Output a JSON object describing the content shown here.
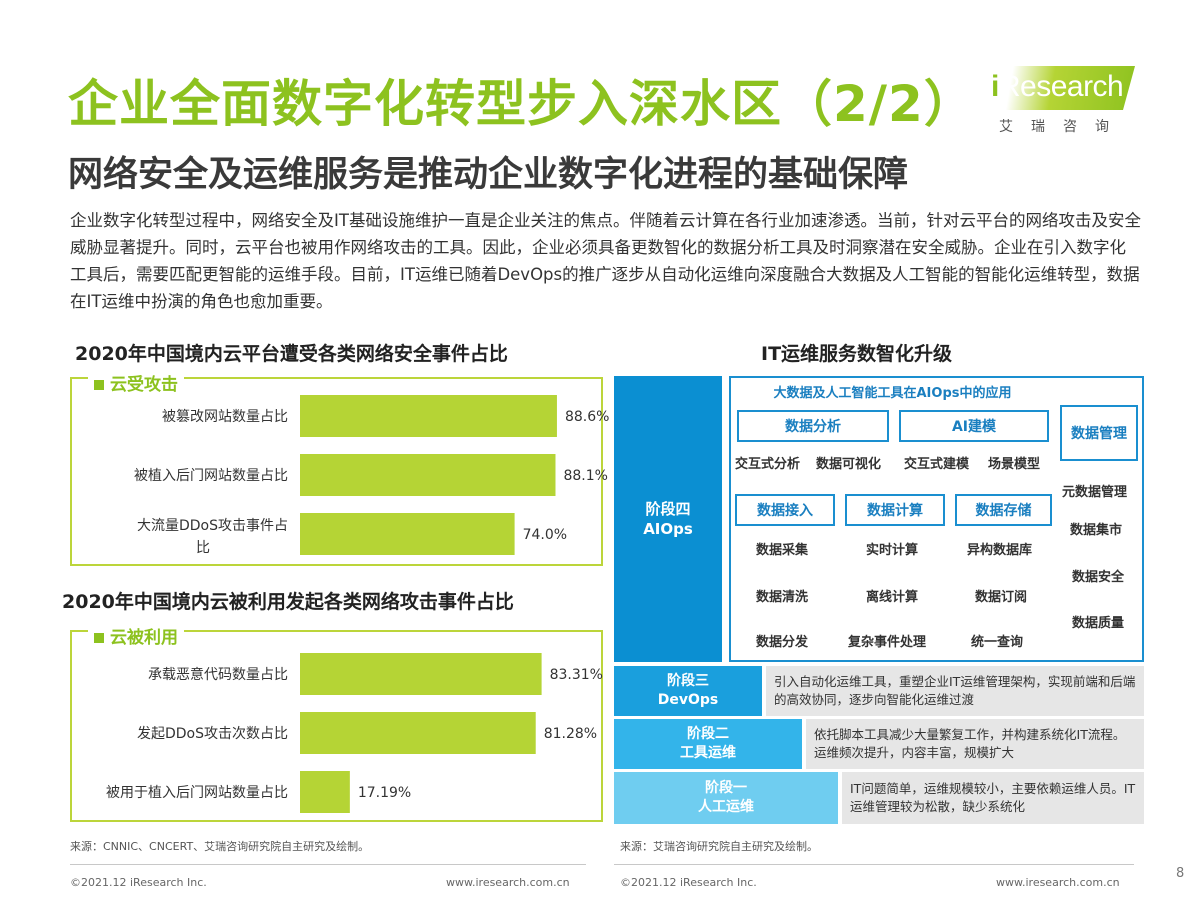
{
  "title": "企业全面数字化转型步入深水区（2/2）",
  "subtitle": "网络安全及运维服务是推动企业数字化进程的基础保障",
  "logo": {
    "brand_i": "i",
    "brand_rest": "Research",
    "cn": "艾瑞咨询"
  },
  "intro": "企业数字化转型过程中，网络安全及IT基础设施维护一直是企业关注的焦点。伴随着云计算在各行业加速渗透。当前，针对云平台的网络攻击及安全威胁显著提升。同时，云平台也被用作网络攻击的工具。因此，企业必须具备更数智化的数据分析工具及时洞察潜在安全威胁。企业在引入数字化工具后，需要匹配更智能的运维手段。目前，IT运维已随着DevOps的推广逐步从自动化运维向深度融合大数据及人工智能的智能化运维转型，数据在IT运维中扮演的角色也愈加重要。",
  "chart_data": [
    {
      "type": "bar",
      "orientation": "horizontal",
      "title": "2020年中国境内云平台遭受各类网络安全事件占比",
      "group_label": "云受攻击",
      "categories": [
        "被篡改网站数量占比",
        "被植入后门网站数量占比",
        "大流量DDoS攻击事件占比"
      ],
      "values": [
        88.6,
        88.1,
        74.0
      ],
      "value_labels": [
        "88.6%",
        "88.1%",
        "74.0%"
      ],
      "unit": "%",
      "xlim": [
        0,
        100
      ],
      "color": "#b5d435"
    },
    {
      "type": "bar",
      "orientation": "horizontal",
      "title": "2020年中国境内云被利用发起各类网络攻击事件占比",
      "group_label": "云被利用",
      "categories": [
        "承载恶意代码数量占比",
        "发起DDoS攻击次数占比",
        "被用于植入后门网站数量占比"
      ],
      "values": [
        83.31,
        81.28,
        17.19
      ],
      "value_labels": [
        "83.31%",
        "81.28%",
        "17.19%"
      ],
      "unit": "%",
      "xlim": [
        0,
        100
      ],
      "color": "#b5d435"
    }
  ],
  "it_diagram": {
    "title": "IT运维服务数智化升级",
    "ai_header": "大数据及人工智能工具在AIOps中的应用",
    "stage4": {
      "line1": "阶段四",
      "line2": "AIOps"
    },
    "boxes": {
      "analysis": "数据分析",
      "ai_model": "AI建模",
      "data_mgmt": "数据管理",
      "ingest": "数据接入",
      "compute": "数据计算",
      "storage": "数据存储"
    },
    "row1_items": [
      "交互式分析",
      "数据可视化",
      "交互式建模",
      "场景模型"
    ],
    "ingest_items": [
      "数据采集",
      "数据清洗",
      "数据分发"
    ],
    "compute_items": [
      "实时计算",
      "离线计算",
      "复杂事件处理"
    ],
    "storage_items": [
      "异构数据库",
      "数据订阅",
      "统一查询"
    ],
    "mgmt_items": [
      "元数据管理",
      "数据集市",
      "数据安全",
      "数据质量"
    ],
    "stages": [
      {
        "line1": "阶段三",
        "line2": "DevOps",
        "desc": "引入自动化运维工具，重塑企业IT运维管理架构，实现前端和后端的高效协同，逐步向智能化运维过渡",
        "color": "#1a9fdd"
      },
      {
        "line1": "阶段二",
        "line2": "工具运维",
        "desc": "依托脚本工具减少大量繁复工作，并构建系统化IT流程。运维频次提升，内容丰富，规模扩大",
        "color": "#33b4ea"
      },
      {
        "line1": "阶段一",
        "line2": "人工运维",
        "desc": "IT问题简单，运维规模较小，主要依赖运维人员。IT运维管理较为松散，缺少系统化",
        "color": "#6fcdf0"
      }
    ]
  },
  "source_left": "来源：CNNIC、CNCERT、艾瑞咨询研究院自主研究及绘制。",
  "source_right": "来源：艾瑞咨询研究院自主研究及绘制。",
  "copyright": "©2021.12 iResearch Inc.",
  "website": "www.iresearch.com.cn",
  "page_number": "8",
  "colors": {
    "brand_green": "#8dc21f",
    "bar_green": "#b5d435",
    "blue": "#0b8fd2"
  }
}
